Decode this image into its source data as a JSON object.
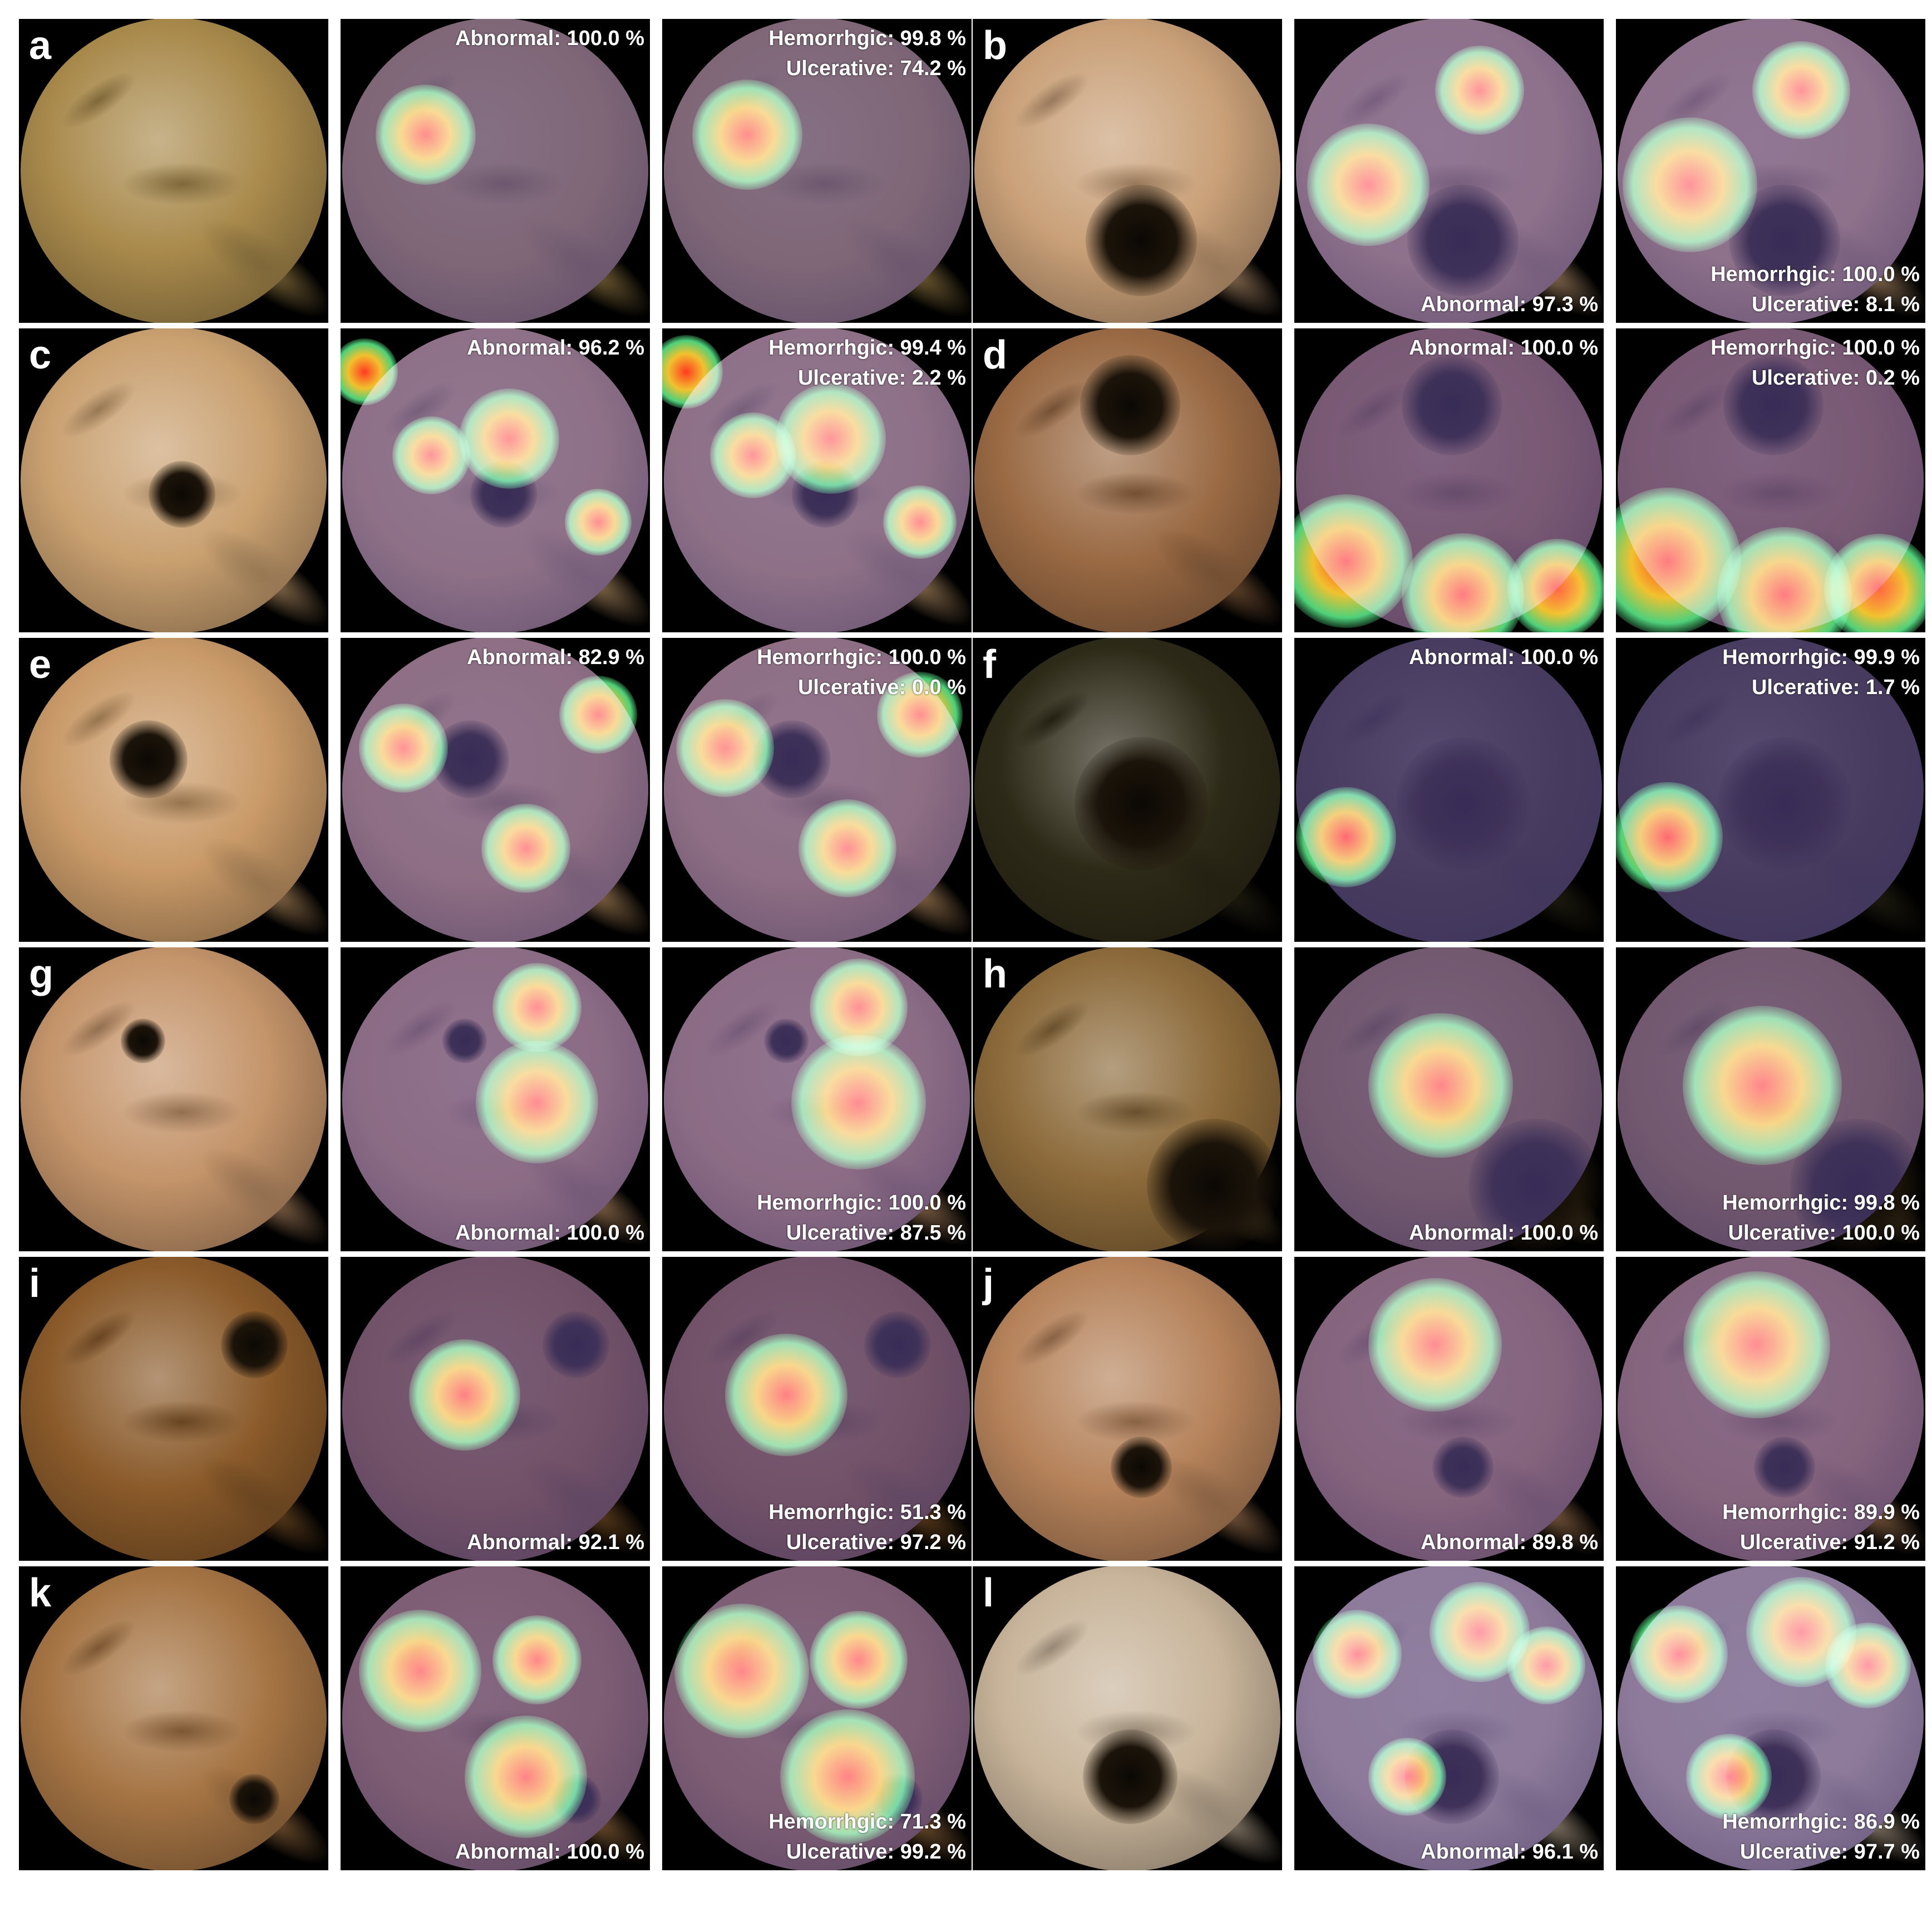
{
  "colors": {
    "background": "#ffffff",
    "frame": "#000000",
    "caption_text": "#ffffff",
    "heat_hot": "#ff3b1f",
    "heat_warm": "#f2c12e",
    "heat_cool": "#4fd17a",
    "overlay_tint": "#5c4a9a"
  },
  "panels": [
    {
      "letter": "a",
      "mucosa_color": "#a98a4c",
      "abnormal_caption": "Abnormal: 100.0 %",
      "hemorrhagic_caption": "Hemorrhgic: 99.8 %",
      "ulcerative_caption": "Ulcerative: 74.2 %",
      "caption_position": "top"
    },
    {
      "letter": "b",
      "mucosa_color": "#c9a078",
      "abnormal_caption": "Abnormal: 97.3 %",
      "hemorrhagic_caption": "Hemorrhgic: 100.0 %",
      "ulcerative_caption": "Ulcerative: 8.1 %",
      "caption_position": "bottom"
    },
    {
      "letter": "c",
      "mucosa_color": "#c9a070",
      "abnormal_caption": "Abnormal: 96.2 %",
      "hemorrhagic_caption": "Hemorrhgic: 99.4 %",
      "ulcerative_caption": "Ulcerative: 2.2 %",
      "caption_position": "top"
    },
    {
      "letter": "d",
      "mucosa_color": "#9a6a44",
      "abnormal_caption": "Abnormal: 100.0 %",
      "hemorrhagic_caption": "Hemorrhgic: 100.0 %",
      "ulcerative_caption": "Ulcerative: 0.2 %",
      "caption_position": "top"
    },
    {
      "letter": "e",
      "mucosa_color": "#c99a68",
      "abnormal_caption": "Abnormal: 82.9 %",
      "hemorrhagic_caption": "Hemorrhgic: 100.0 %",
      "ulcerative_caption": "Ulcerative: 0.0 %",
      "caption_position": "top"
    },
    {
      "letter": "f",
      "mucosa_color": "#2e2a18",
      "abnormal_caption": "Abnormal: 100.0 %",
      "hemorrhagic_caption": "Hemorrhgic: 99.9 %",
      "ulcerative_caption": "Ulcerative: 1.7 %",
      "caption_position": "top"
    },
    {
      "letter": "g",
      "mucosa_color": "#c4946a",
      "abnormal_caption": "Abnormal: 100.0 %",
      "hemorrhagic_caption": "Hemorrhgic: 100.0 %",
      "ulcerative_caption": "Ulcerative: 87.5 %",
      "caption_position": "bottom"
    },
    {
      "letter": "h",
      "mucosa_color": "#8c6a3a",
      "abnormal_caption": "Abnormal: 100.0 %",
      "hemorrhagic_caption": "Hemorrhgic: 99.8 %",
      "ulcerative_caption": "Ulcerative: 100.0 %",
      "caption_position": "bottom"
    },
    {
      "letter": "i",
      "mucosa_color": "#8a5a2a",
      "abnormal_caption": "Abnormal: 92.1 %",
      "hemorrhagic_caption": "Hemorrhgic: 51.3 %",
      "ulcerative_caption": "Ulcerative: 97.2 %",
      "caption_position": "bottom"
    },
    {
      "letter": "j",
      "mucosa_color": "#b5825a",
      "abnormal_caption": "Abnormal: 89.8 %",
      "hemorrhagic_caption": "Hemorrhgic: 89.9 %",
      "ulcerative_caption": "Ulcerative: 91.2 %",
      "caption_position": "bottom"
    },
    {
      "letter": "k",
      "mucosa_color": "#a57444",
      "abnormal_caption": "Abnormal: 100.0 %",
      "hemorrhagic_caption": "Hemorrhgic: 71.3 %",
      "ulcerative_caption": "Ulcerative: 99.2 %",
      "caption_position": "bottom"
    },
    {
      "letter": "l",
      "mucosa_color": "#c8b49a",
      "abnormal_caption": "Abnormal: 96.1 %",
      "hemorrhagic_caption": "Hemorrhgic: 86.9 %",
      "ulcerative_caption": "Ulcerative: 97.7 %",
      "caption_position": "bottom"
    }
  ]
}
